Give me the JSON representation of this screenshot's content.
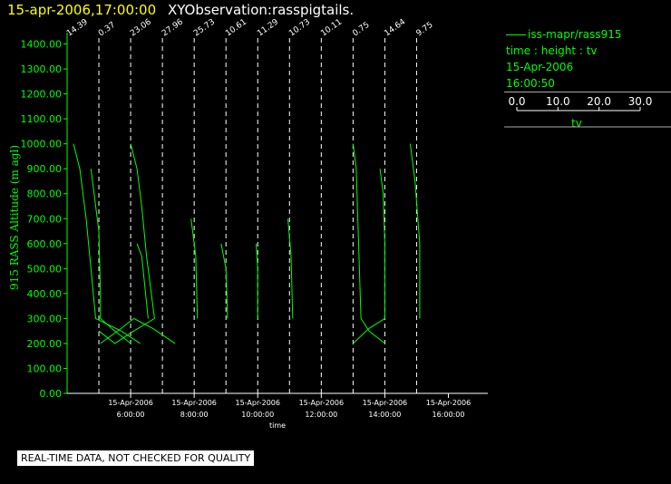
{
  "header": {
    "timestamp": "15-apr-2006,17:00:00",
    "title": "XYObservation:rasspigtails."
  },
  "legend": {
    "series_label": "iss-mapr/rass915",
    "fields": "time : height : tv",
    "date": "15-Apr-2006",
    "time": "16:00:50",
    "scale_ticks": [
      "0.0",
      "10.0",
      "20.0",
      "30.0"
    ],
    "scale_label": "tv"
  },
  "footer": {
    "warning": "REAL-TIME DATA, NOT CHECKED FOR QUALITY"
  },
  "colors": {
    "background": "#000000",
    "data": "#00ff00",
    "guides": "#ffffff",
    "timestamp": "#ffff00"
  },
  "chart_data": {
    "type": "line",
    "title": "",
    "ylabel": "915 RASS Altitude (m agl)",
    "xlabel": "time",
    "ylim": [
      0,
      1450
    ],
    "xlim_hours": [
      4.0,
      16.9
    ],
    "y_ticks": [
      "0.00",
      "100.00",
      "200.00",
      "300.00",
      "400.00",
      "500.00",
      "600.00",
      "700.00",
      "800.00",
      "900.00",
      "1000.00",
      "1100.00",
      "1200.00",
      "1300.00",
      "1400.00"
    ],
    "x_ticks": [
      {
        "date": "15-Apr-2006",
        "time": "6:00:00",
        "hour": 6
      },
      {
        "date": "15-Apr-2006",
        "time": "8:00:00",
        "hour": 8
      },
      {
        "date": "15-Apr-2006",
        "time": "10:00:00",
        "hour": 10
      },
      {
        "date": "15-Apr-2006",
        "time": "12:00:00",
        "hour": 12
      },
      {
        "date": "15-Apr-2006",
        "time": "14:00:00",
        "hour": 14
      },
      {
        "date": "15-Apr-2006",
        "time": "16:00:00",
        "hour": 16
      }
    ],
    "profiles": [
      {
        "label": "14.39",
        "hour": 4.0
      },
      {
        "label": "0.37",
        "hour": 5.0
      },
      {
        "label": "23.06",
        "hour": 6.0
      },
      {
        "label": "27.96",
        "hour": 7.0
      },
      {
        "label": "25.73",
        "hour": 8.0
      },
      {
        "label": "10.61",
        "hour": 9.0
      },
      {
        "label": "11.29",
        "hour": 10.0
      },
      {
        "label": "10.73",
        "hour": 11.0
      },
      {
        "label": "10.11",
        "hour": 12.0
      },
      {
        "label": "0.75",
        "hour": 13.0
      },
      {
        "label": "14.64",
        "hour": 14.0
      },
      {
        "label": "9.75",
        "hour": 15.0
      }
    ],
    "traces": [
      [
        [
          4.2,
          1000
        ],
        [
          4.4,
          900
        ],
        [
          4.6,
          700
        ],
        [
          4.75,
          500
        ],
        [
          4.9,
          300
        ],
        [
          5.7,
          250
        ],
        [
          6.3,
          200
        ]
      ],
      [
        [
          4.75,
          900
        ],
        [
          4.85,
          800
        ],
        [
          5.0,
          650
        ],
        [
          5.05,
          400
        ],
        [
          5.05,
          300
        ],
        [
          5.5,
          250
        ],
        [
          6.0,
          200
        ]
      ],
      [
        [
          5.05,
          200
        ],
        [
          5.7,
          260
        ],
        [
          6.1,
          300
        ],
        [
          6.7,
          260
        ],
        [
          7.4,
          200
        ]
      ],
      [
        [
          6.0,
          1000
        ],
        [
          6.2,
          900
        ],
        [
          6.35,
          750
        ],
        [
          6.5,
          550
        ],
        [
          6.75,
          300
        ],
        [
          6.1,
          250
        ],
        [
          5.5,
          200
        ],
        [
          5.0,
          250
        ]
      ],
      [
        [
          6.2,
          600
        ],
        [
          6.35,
          550
        ],
        [
          6.55,
          300
        ]
      ],
      [
        [
          7.9,
          700
        ],
        [
          8.05,
          550
        ],
        [
          8.1,
          300
        ]
      ],
      [
        [
          8.85,
          600
        ],
        [
          9.0,
          500
        ],
        [
          9.05,
          300
        ]
      ],
      [
        [
          9.95,
          600
        ],
        [
          10.0,
          500
        ],
        [
          10.0,
          300
        ]
      ],
      [
        [
          10.95,
          700
        ],
        [
          11.05,
          550
        ],
        [
          11.1,
          300
        ]
      ],
      [
        [
          13.0,
          1000
        ],
        [
          13.1,
          900
        ],
        [
          13.15,
          700
        ],
        [
          13.25,
          300
        ],
        [
          13.5,
          250
        ],
        [
          14.0,
          200
        ]
      ],
      [
        [
          13.0,
          200
        ],
        [
          13.5,
          260
        ],
        [
          14.0,
          300
        ]
      ],
      [
        [
          13.85,
          900
        ],
        [
          13.95,
          800
        ],
        [
          14.0,
          600
        ],
        [
          14.0,
          300
        ]
      ],
      [
        [
          14.8,
          1000
        ],
        [
          14.95,
          850
        ],
        [
          15.1,
          600
        ],
        [
          15.1,
          300
        ]
      ]
    ]
  }
}
